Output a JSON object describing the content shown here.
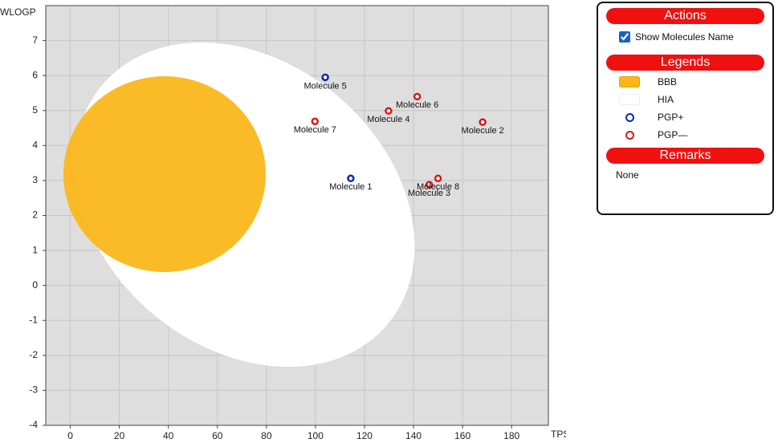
{
  "chart_data": {
    "type": "scatter",
    "xlabel": "TPSA",
    "ylabel": "WLOGP",
    "xlim": [
      -10,
      195
    ],
    "ylim": [
      -4,
      8
    ],
    "xticks": [
      0,
      20,
      40,
      60,
      80,
      100,
      120,
      140,
      160,
      180
    ],
    "yticks": [
      -4,
      -3,
      -2,
      -1,
      0,
      1,
      2,
      3,
      4,
      5,
      6,
      7
    ],
    "grid": true,
    "regions": [
      {
        "name": "BBB",
        "color": "#fbb71a"
      },
      {
        "name": "HIA",
        "color": "#ffffff"
      }
    ],
    "series": [
      {
        "name": "PGP+",
        "color": "#0a2aa8",
        "x": [
          114.4,
          104
        ],
        "values": [
          3.06,
          5.95
        ],
        "labels": [
          "Molecule 1",
          "Molecule 5"
        ]
      },
      {
        "name": "PGP—",
        "color": "#d61a1a",
        "x": [
          168.2,
          146.4,
          129.8,
          141.5,
          99.8,
          150
        ],
        "values": [
          4.67,
          2.88,
          4.99,
          5.4,
          4.69,
          3.06
        ],
        "labels": [
          "Molecule 2",
          "Molecule 3",
          "Molecule 4",
          "Molecule 6",
          "Molecule 7",
          "Molecule 8"
        ]
      }
    ]
  },
  "panel": {
    "actions_title": "Actions",
    "show_names_label": "Show Molecules Name",
    "legends_title": "Legends",
    "remarks_title": "Remarks",
    "remarks_text": "None"
  }
}
